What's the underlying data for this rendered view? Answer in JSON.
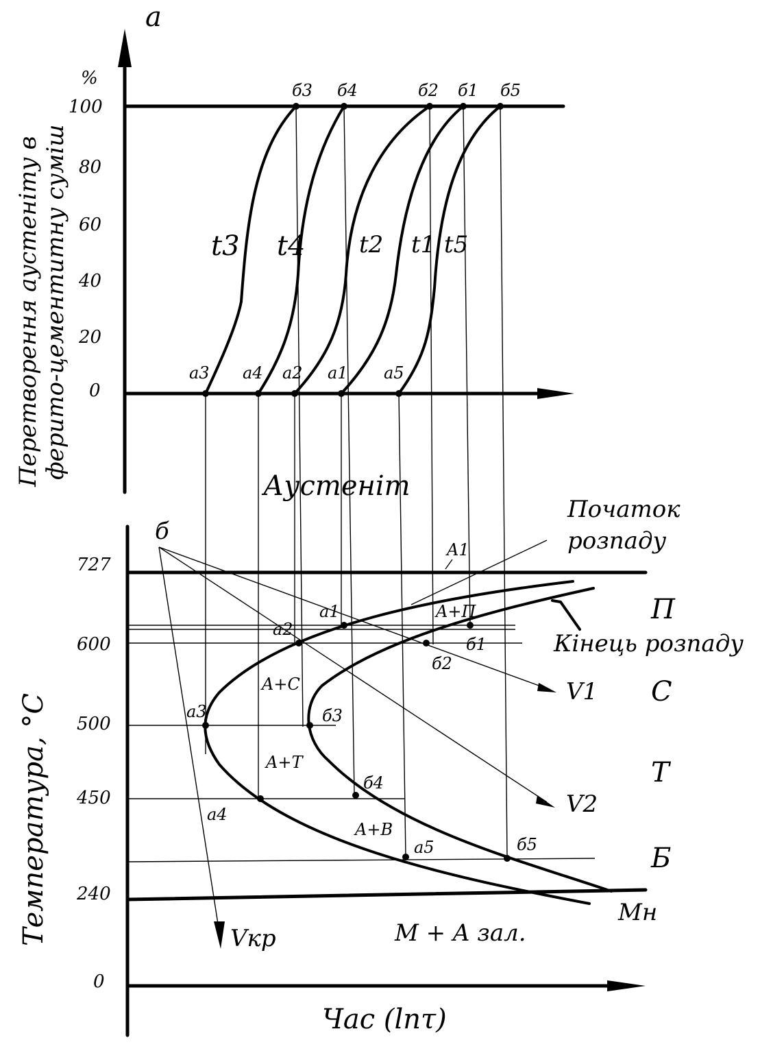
{
  "top_chart": {
    "axis_letter": "a",
    "percent_symbol": "%",
    "y_label_line1": "Перетворення аустеніту в",
    "y_label_line2": "ферито-цементитну суміш",
    "y_ticks": [
      "100",
      "80",
      "60",
      "40",
      "20",
      "0"
    ],
    "curve_labels": [
      "t3",
      "t4",
      "t2",
      "t1",
      "t5"
    ],
    "start_points": [
      "a3",
      "a4",
      "a2",
      "a1",
      "a5"
    ],
    "end_points": [
      "б3",
      "б4",
      "б2",
      "б1",
      "б5"
    ]
  },
  "bottom_chart": {
    "region_austenite": "Аустеніт",
    "y_label": "Температура, °С",
    "y_ticks": [
      "727",
      "600",
      "500",
      "450",
      "240",
      "0"
    ],
    "x_label": "Час (lnτ)",
    "start_label_line1": "Початок",
    "start_label_line2": "розпаду",
    "end_label": "Кінець розпаду",
    "phase_letters": [
      "П",
      "С",
      "Т",
      "Б"
    ],
    "regions": [
      "A+П",
      "A+C",
      "A+T",
      "A+B",
      "M + A зал."
    ],
    "ms_label": "Мн",
    "a1_line_label": "A1",
    "origin_label": "б",
    "cooling_curves": [
      "V1",
      "V2",
      "Vкр"
    ],
    "point_labels": [
      "a1",
      "a2",
      "a3",
      "a4",
      "a5",
      "б1",
      "б2",
      "б3",
      "б4",
      "б5"
    ]
  }
}
